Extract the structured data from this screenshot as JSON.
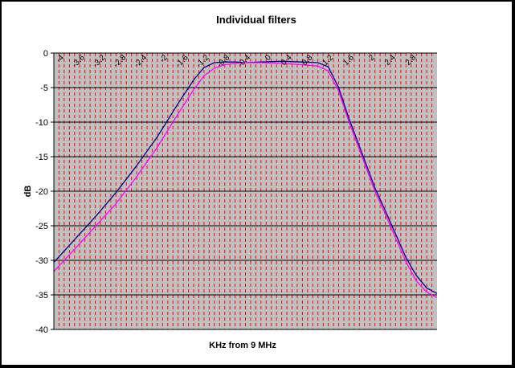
{
  "chart_data": {
    "type": "line",
    "title": "Individual filters",
    "xlabel": "KHz from 9 MHz",
    "ylabel": "dB",
    "ylim": [
      -40,
      0
    ],
    "xlim": [
      -4.2,
      3.2
    ],
    "yticks": [
      0,
      -5,
      -10,
      -15,
      -20,
      -25,
      -30,
      -35,
      -40
    ],
    "xticks": [
      -4,
      -3.6,
      -3.2,
      -2.8,
      -2.4,
      -2,
      -1.6,
      -1.2,
      -0.8,
      -0.4,
      0,
      0.4,
      0.8,
      1.2,
      1.6,
      2,
      2.4,
      2.8
    ],
    "xtick_labels": [
      "-4",
      "-3.6",
      "-3.2",
      "-2.8",
      "-2.4",
      "-2",
      "-1.6",
      "-1.2",
      "-0.8",
      "-0.4",
      "0",
      "0.4",
      "0.8",
      "1.2",
      "1.6",
      "2",
      "2.4",
      "2.8"
    ],
    "grid": true,
    "colors": {
      "plot_background": "#c0c0c0",
      "vertical_gridline": "#ff0000",
      "horizontal_gridline": "#000000"
    },
    "series": [
      {
        "color": "#000080",
        "x": [
          -4.2,
          -3.8,
          -3.4,
          -3.0,
          -2.6,
          -2.2,
          -1.8,
          -1.5,
          -1.3,
          -1.1,
          -0.9,
          -0.7,
          -0.5,
          -0.2,
          0.2,
          0.6,
          0.9,
          1.1,
          1.3,
          1.5,
          1.8,
          2.0,
          2.2,
          2.4,
          2.6,
          2.8,
          3.0,
          3.2
        ],
        "y": [
          -30.3,
          -27.0,
          -23.7,
          -20.2,
          -16.3,
          -12.1,
          -7.3,
          -3.9,
          -2.1,
          -1.4,
          -1.3,
          -1.3,
          -1.4,
          -1.3,
          -1.2,
          -1.3,
          -1.4,
          -2.0,
          -5.0,
          -9.5,
          -15.5,
          -19.5,
          -22.8,
          -26.2,
          -29.6,
          -32.2,
          -34.0,
          -34.8
        ]
      },
      {
        "color": "#ff00ff",
        "x": [
          -4.2,
          -3.8,
          -3.4,
          -3.0,
          -2.6,
          -2.2,
          -1.8,
          -1.5,
          -1.3,
          -1.1,
          -0.9,
          -0.7,
          -0.5,
          -0.2,
          0.2,
          0.6,
          0.9,
          1.1,
          1.3,
          1.5,
          1.8,
          2.0,
          2.2,
          2.4,
          2.6,
          2.8,
          3.0,
          3.2
        ],
        "y": [
          -31.6,
          -28.4,
          -25.1,
          -21.8,
          -17.9,
          -13.6,
          -8.8,
          -5.3,
          -3.3,
          -2.2,
          -1.7,
          -1.5,
          -1.4,
          -1.4,
          -1.5,
          -1.7,
          -1.9,
          -2.6,
          -5.5,
          -10.0,
          -16.0,
          -20.0,
          -23.3,
          -26.8,
          -30.2,
          -33.0,
          -34.6,
          -35.4
        ]
      }
    ]
  }
}
